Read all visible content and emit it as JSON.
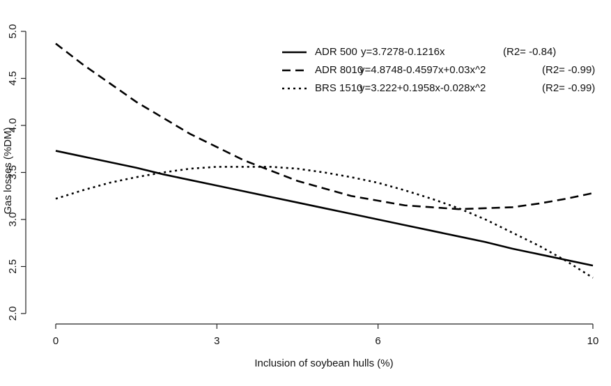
{
  "chart_data": {
    "type": "line",
    "x_label": "Inclusion of soybean hulls (%)",
    "y_label": "Gas losses (%DM)",
    "x": [
      0,
      0.5,
      1,
      1.5,
      2,
      2.5,
      3,
      3.5,
      4,
      4.5,
      5,
      5.5,
      6,
      6.5,
      7,
      7.5,
      8,
      8.5,
      9,
      9.5,
      10
    ],
    "series": [
      {
        "name": "ADR 500",
        "equation": "y=3.7278-0.1216x",
        "r2": "(R2= -0.84)",
        "color": "#000000",
        "dash": "solid",
        "values": [
          3.73,
          3.67,
          3.61,
          3.55,
          3.48,
          3.42,
          3.36,
          3.3,
          3.24,
          3.18,
          3.12,
          3.06,
          3.0,
          2.94,
          2.88,
          2.82,
          2.76,
          2.69,
          2.63,
          2.57,
          2.51
        ]
      },
      {
        "name": "ADR 8010",
        "equation": "y=4.8748-0.4597x+0.03x^2",
        "r2": "(R2= -0.99)",
        "color": "#000000",
        "dash": "dashed",
        "values": [
          4.87,
          4.65,
          4.45,
          4.25,
          4.08,
          3.91,
          3.77,
          3.63,
          3.52,
          3.41,
          3.33,
          3.25,
          3.2,
          3.15,
          3.13,
          3.11,
          3.12,
          3.13,
          3.17,
          3.22,
          3.28
        ]
      },
      {
        "name": "BRS 1510",
        "equation": "y=3.222+0.1958x-0.028x^2",
        "r2": "(R2= -0.99)",
        "color": "#000000",
        "dash": "dotted",
        "values": [
          3.22,
          3.31,
          3.39,
          3.45,
          3.5,
          3.54,
          3.56,
          3.56,
          3.56,
          3.54,
          3.5,
          3.45,
          3.39,
          3.31,
          3.22,
          3.12,
          3.0,
          2.86,
          2.72,
          2.56,
          2.38
        ]
      }
    ],
    "xlim": [
      0,
      10
    ],
    "xticks": [
      0,
      3,
      6,
      10
    ],
    "ylim": [
      2,
      5
    ],
    "yticks": [
      {
        "value": 2,
        "label": "2.0"
      },
      {
        "value": 2.5,
        "label": "2.5"
      },
      {
        "value": 3,
        "label": "3.0"
      },
      {
        "value": 3.5,
        "label": "3.5"
      },
      {
        "value": 4,
        "label": "4.0"
      },
      {
        "value": 4.5,
        "label": "4.5"
      },
      {
        "value": 5,
        "label": "5.0"
      }
    ],
    "grid": false,
    "legend": "top-right"
  }
}
